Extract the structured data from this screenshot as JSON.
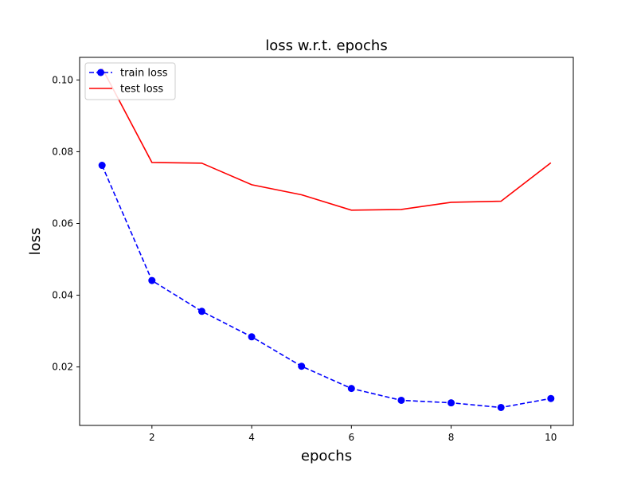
{
  "chart_data": {
    "type": "line",
    "title": "loss w.r.t. epochs",
    "xlabel": "epochs",
    "ylabel": "loss",
    "x": [
      1,
      2,
      3,
      4,
      5,
      6,
      7,
      8,
      9,
      10
    ],
    "xticks": [
      2,
      4,
      6,
      8,
      10
    ],
    "xtick_labels": [
      "2",
      "4",
      "6",
      "8",
      "10"
    ],
    "yticks": [
      0.02,
      0.04,
      0.06,
      0.08,
      0.1
    ],
    "ytick_labels": [
      "0.02",
      "0.04",
      "0.06",
      "0.08",
      "0.10"
    ],
    "xlim": [
      0.55,
      10.45
    ],
    "ylim": [
      0.0037,
      0.1063
    ],
    "grid": false,
    "legend_position": "top-left",
    "series": [
      {
        "name": "train loss",
        "color": "#0000ff",
        "style": "dashed",
        "marker": "circle",
        "values": [
          0.0762,
          0.0441,
          0.0355,
          0.0284,
          0.0202,
          0.014,
          0.0107,
          0.01,
          0.0087,
          0.0112
        ]
      },
      {
        "name": "test loss",
        "color": "#ff0000",
        "style": "solid",
        "marker": "none",
        "values": [
          0.1033,
          0.077,
          0.0768,
          0.0708,
          0.068,
          0.0637,
          0.0639,
          0.0659,
          0.0662,
          0.0769
        ]
      }
    ]
  }
}
